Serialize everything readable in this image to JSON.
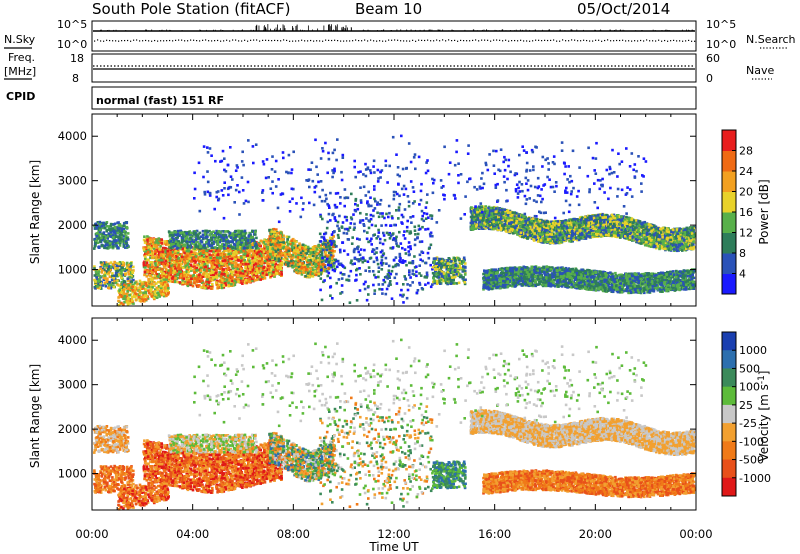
{
  "header": {
    "station": "South Pole Station (fitACF)",
    "beam": "Beam 10",
    "date": "05/Oct/2014"
  },
  "top_panels": {
    "nsky_label": "N.Sky",
    "nsearch_label": "N.Search",
    "freq_label_line1": "Freq.",
    "freq_label_line2": "[MHz]",
    "nave_label": "Nave",
    "cpid_label": "CPID",
    "cpid_value": "normal (fast) 151 RF",
    "noise_ticks_left": [
      "10^5",
      "10^0"
    ],
    "noise_ticks_right": [
      "10^5",
      "10^0"
    ],
    "freq_ticks": [
      "18",
      "8"
    ],
    "nave_ticks": [
      "60",
      "0"
    ]
  },
  "chart_data": [
    {
      "type": "heatmap",
      "name": "power-panel",
      "ylabel": "Slant Range [km]",
      "xlabel": "",
      "x_range_hours": [
        0,
        24
      ],
      "ylim": [
        180,
        4500
      ],
      "y_ticks": [
        "1000",
        "2000",
        "3000",
        "4000"
      ],
      "colorbar": {
        "label": "Power [dB]",
        "ticks": [
          "4",
          "8",
          "12",
          "16",
          "20",
          "24",
          "28"
        ],
        "colors": [
          "#1a1aff",
          "#2a52b8",
          "#2e7d5a",
          "#58b04a",
          "#e8d22a",
          "#f2a020",
          "#ef6a14",
          "#e81e1e"
        ]
      }
    },
    {
      "type": "heatmap",
      "name": "velocity-panel",
      "ylabel": "Slant Range [km]",
      "xlabel": "Time UT",
      "x_range_hours": [
        0,
        24
      ],
      "x_ticks": [
        "00:00",
        "04:00",
        "08:00",
        "12:00",
        "16:00",
        "20:00",
        "00:00"
      ],
      "ylim": [
        180,
        4500
      ],
      "y_ticks": [
        "1000",
        "2000",
        "3000",
        "4000"
      ],
      "colorbar": {
        "label": "Velocity [m s^-1]",
        "ticks": [
          "1000",
          "500",
          "100",
          "25",
          "-25",
          "-100",
          "-500",
          "-1000"
        ],
        "colors": [
          "#1a3fb0",
          "#2c6fae",
          "#3b8a5a",
          "#5dbb3a",
          "#c8c8c8",
          "#f2a030",
          "#f07a18",
          "#e8501a",
          "#e01818"
        ]
      }
    }
  ]
}
